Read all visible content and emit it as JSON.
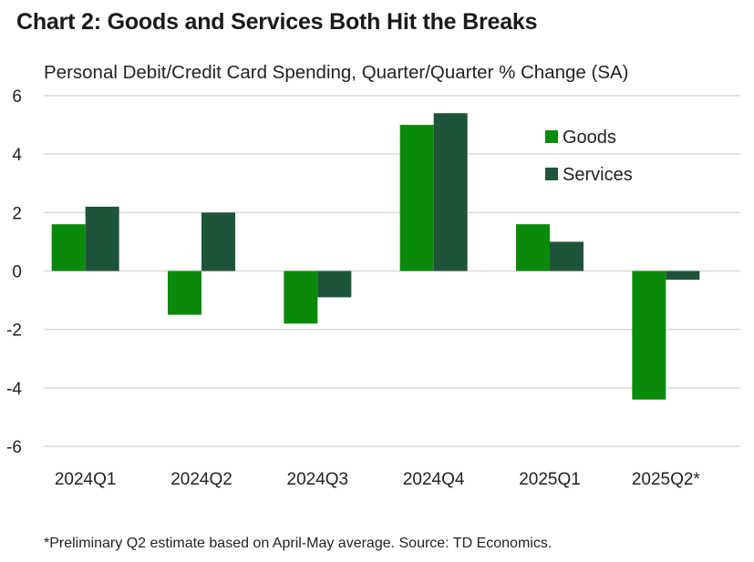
{
  "title": "Chart 2: Goods and Services Both Hit the Breaks",
  "subtitle": "Personal Debit/Credit Card Spending, Quarter/Quarter % Change (SA)",
  "footnote": "*Preliminary Q2 estimate based on April-May average. Source: TD Economics.",
  "colors": {
    "goods": "#0a8a0a",
    "services": "#1e5538",
    "grid": "#d9d9d9"
  },
  "chart_data": {
    "type": "bar",
    "title": "Chart 2: Goods and Services Both Hit the Breaks",
    "ylabel": "Personal Debit/Credit Card Spending, Quarter/Quarter % Change (SA)",
    "xlabel": "",
    "ylim": [
      -6,
      6
    ],
    "yticks": [
      6,
      4,
      2,
      0,
      -2,
      -4,
      -6
    ],
    "ytick_labels": [
      "6",
      "4",
      "2",
      "0",
      "-2",
      "-4",
      "-6"
    ],
    "categories": [
      "2024Q1",
      "2024Q2",
      "2024Q3",
      "2024Q4",
      "2025Q1",
      "2025Q2*"
    ],
    "series": [
      {
        "name": "Goods",
        "values": [
          1.6,
          -1.5,
          -1.8,
          5.0,
          1.6,
          -4.4
        ]
      },
      {
        "name": "Services",
        "values": [
          2.2,
          2.0,
          -0.9,
          5.4,
          1.0,
          -0.3
        ]
      }
    ],
    "grid": true,
    "legend": "top-right"
  }
}
